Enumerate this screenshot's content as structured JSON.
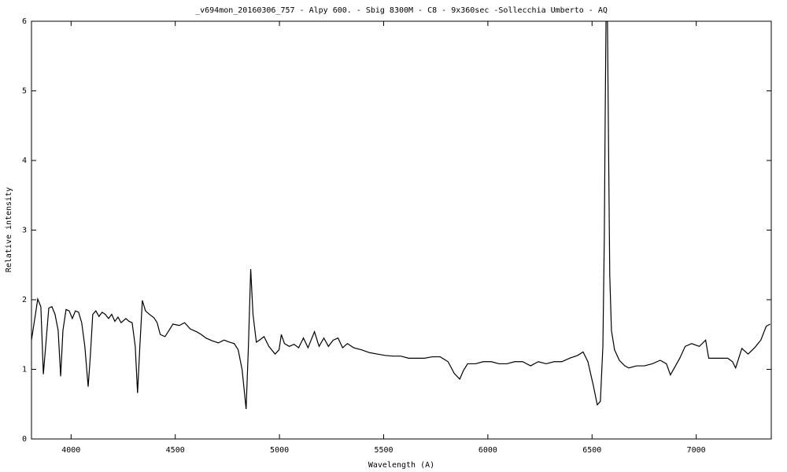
{
  "chart_data": {
    "type": "line",
    "title": "_v694mon_20160306_757 - Alpy 600. - Sbig 8300M -  C8  - 9x360sec -Sollecchia Umberto - AQ",
    "x_label": "Wavelength (A)",
    "y_label": "Relative intensity",
    "color": "#000000",
    "xlim": [
      3810,
      7360
    ],
    "ylim": [
      0,
      6
    ],
    "xticks": [
      4000,
      4500,
      5000,
      5500,
      6000,
      6500,
      7000
    ],
    "yticks": [
      0,
      1,
      2,
      3,
      4,
      5,
      6
    ],
    "x": [
      3810,
      3829,
      3840,
      3855,
      3867,
      3878,
      3893,
      3908,
      3923,
      3938,
      3950,
      3961,
      3976,
      3991,
      4006,
      4021,
      4036,
      4051,
      4066,
      4082,
      4093,
      4104,
      4119,
      4134,
      4149,
      4164,
      4180,
      4195,
      4210,
      4225,
      4240,
      4263,
      4278,
      4293,
      4308,
      4319,
      4330,
      4342,
      4357,
      4376,
      4398,
      4413,
      4428,
      4451,
      4470,
      4489,
      4519,
      4545,
      4572,
      4602,
      4625,
      4647,
      4677,
      4707,
      4734,
      4760,
      4783,
      4802,
      4821,
      4840,
      4851,
      4862,
      4873,
      4889,
      4904,
      4926,
      4949,
      4979,
      4998,
      5009,
      5024,
      5047,
      5070,
      5092,
      5115,
      5137,
      5168,
      5190,
      5213,
      5235,
      5258,
      5281,
      5303,
      5326,
      5356,
      5394,
      5432,
      5469,
      5507,
      5545,
      5582,
      5620,
      5658,
      5696,
      5733,
      5771,
      5809,
      5839,
      5865,
      5884,
      5903,
      5941,
      5978,
      6016,
      6054,
      6091,
      6129,
      6167,
      6205,
      6242,
      6280,
      6318,
      6355,
      6393,
      6431,
      6457,
      6480,
      6506,
      6525,
      6540,
      6552,
      6559,
      6563,
      6567,
      6574,
      6578,
      6585,
      6593,
      6608,
      6631,
      6657,
      6676,
      6714,
      6751,
      6789,
      6827,
      6857,
      6876,
      6895,
      6921,
      6947,
      6978,
      7015,
      7045,
      7060,
      7091,
      7121,
      7151,
      7174,
      7189,
      7204,
      7219,
      7249,
      7280,
      7310,
      7336,
      7355
    ],
    "values": [
      1.42,
      1.79,
      2.01,
      1.9,
      0.93,
      1.33,
      1.88,
      1.9,
      1.79,
      1.56,
      0.9,
      1.56,
      1.86,
      1.84,
      1.73,
      1.84,
      1.82,
      1.67,
      1.33,
      0.75,
      1.22,
      1.79,
      1.84,
      1.76,
      1.82,
      1.79,
      1.73,
      1.79,
      1.69,
      1.75,
      1.67,
      1.73,
      1.69,
      1.67,
      1.33,
      0.66,
      1.33,
      1.99,
      1.84,
      1.79,
      1.74,
      1.67,
      1.5,
      1.47,
      1.56,
      1.65,
      1.63,
      1.67,
      1.58,
      1.54,
      1.5,
      1.45,
      1.41,
      1.38,
      1.42,
      1.39,
      1.37,
      1.28,
      0.99,
      0.43,
      1.33,
      2.44,
      1.79,
      1.39,
      1.42,
      1.47,
      1.33,
      1.22,
      1.28,
      1.5,
      1.37,
      1.33,
      1.36,
      1.31,
      1.45,
      1.31,
      1.54,
      1.33,
      1.45,
      1.33,
      1.42,
      1.45,
      1.31,
      1.37,
      1.31,
      1.28,
      1.24,
      1.22,
      1.2,
      1.19,
      1.19,
      1.16,
      1.16,
      1.16,
      1.18,
      1.18,
      1.11,
      0.94,
      0.86,
      0.99,
      1.08,
      1.08,
      1.11,
      1.11,
      1.08,
      1.08,
      1.11,
      1.11,
      1.05,
      1.11,
      1.08,
      1.11,
      1.11,
      1.16,
      1.2,
      1.25,
      1.11,
      0.77,
      0.49,
      0.54,
      1.33,
      2.92,
      4.61,
      6.0,
      6.0,
      4.61,
      2.35,
      1.56,
      1.28,
      1.13,
      1.05,
      1.02,
      1.05,
      1.05,
      1.08,
      1.13,
      1.08,
      0.92,
      1.02,
      1.16,
      1.33,
      1.37,
      1.33,
      1.42,
      1.16,
      1.16,
      1.16,
      1.16,
      1.11,
      1.02,
      1.16,
      1.3,
      1.22,
      1.31,
      1.42,
      1.62,
      1.65
    ]
  }
}
